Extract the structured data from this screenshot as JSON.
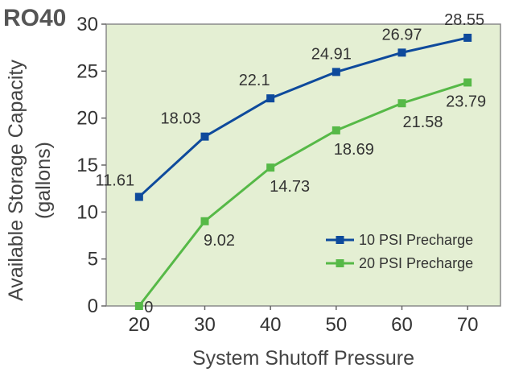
{
  "chart_data": {
    "type": "line",
    "title": "RO40",
    "xlabel": "System Shutoff Pressure",
    "ylabel_line1": "Available Storage Capacity",
    "ylabel_line2": "(gallons)",
    "x": [
      20,
      30,
      40,
      50,
      60,
      70
    ],
    "x_tick_labels": [
      "20",
      "30",
      "40",
      "50",
      "60",
      "70"
    ],
    "xlim": [
      15,
      75
    ],
    "ylim": [
      0,
      30
    ],
    "y_ticks": [
      0,
      5,
      10,
      15,
      20,
      25,
      30
    ],
    "y_tick_labels": [
      "0",
      "5",
      "10",
      "15",
      "20",
      "25",
      "30"
    ],
    "series": [
      {
        "name": "10 PSI Precharge",
        "color": "#0e4a9c",
        "values": [
          11.61,
          18.03,
          22.1,
          24.91,
          26.97,
          28.55
        ],
        "labels": [
          "11.61",
          "18.03",
          "22.1",
          "24.91",
          "26.97",
          "28.55"
        ]
      },
      {
        "name": "20 PSI Precharge",
        "color": "#56b947",
        "values": [
          0,
          9.02,
          14.73,
          18.69,
          21.58,
          23.79
        ],
        "labels": [
          "0",
          "9.02",
          "14.73",
          "18.69",
          "21.58",
          "23.79"
        ]
      }
    ],
    "plot_background": "#e4efd3",
    "legend_position": "lower-right",
    "grid": false
  }
}
